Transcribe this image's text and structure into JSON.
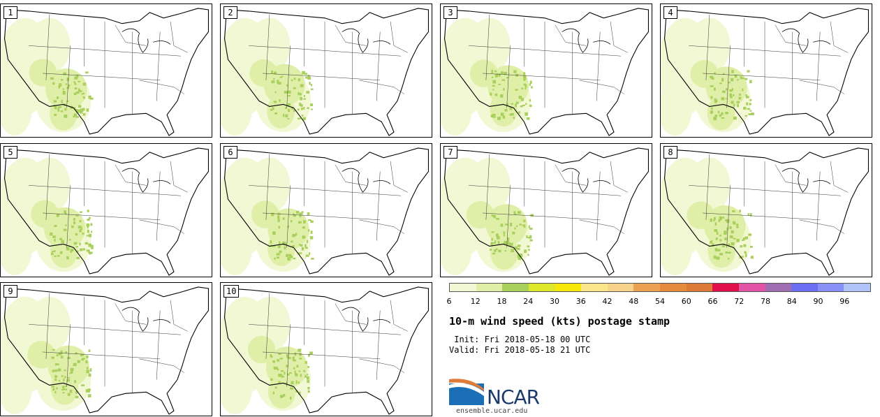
{
  "panels": [
    {
      "label": "1"
    },
    {
      "label": "2"
    },
    {
      "label": "3"
    },
    {
      "label": "4"
    },
    {
      "label": "5"
    },
    {
      "label": "6"
    },
    {
      "label": "7"
    },
    {
      "label": "8"
    },
    {
      "label": "9"
    },
    {
      "label": "10"
    }
  ],
  "colorbar": {
    "colors": [
      "#f2f7d4",
      "#dfefa8",
      "#a9cf5c",
      "#dde928",
      "#f7e80a",
      "#f9e58a",
      "#f7d28a",
      "#eba250",
      "#e58b3c",
      "#dd7a3a",
      "#e2104a",
      "#e254a6",
      "#a06eb2",
      "#6b6ef2",
      "#8892f6",
      "#b0c4f8"
    ],
    "ticks": [
      "6",
      "12",
      "18",
      "24",
      "30",
      "36",
      "42",
      "48",
      "54",
      "60",
      "66",
      "72",
      "78",
      "84",
      "90",
      "96"
    ]
  },
  "title": "10-m wind speed (kts) postage stamp",
  "init": " Init: Fri 2018-05-18 00 UTC",
  "valid": "Valid: Fri 2018-05-18 21 UTC",
  "logo": {
    "text": "NCAR",
    "site": "ensemble.ucar.edu",
    "accent": "#1b6fb7"
  }
}
